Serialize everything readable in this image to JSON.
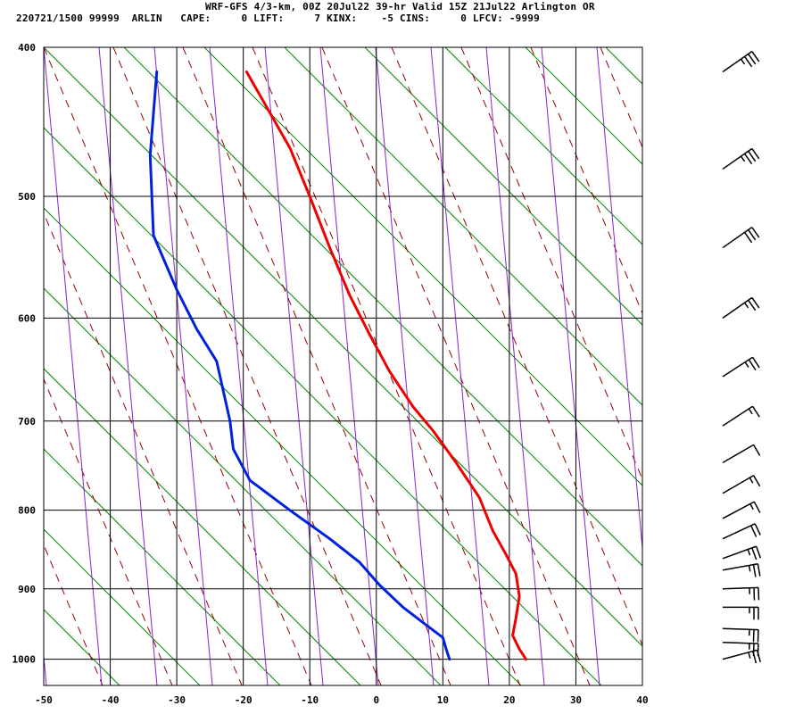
{
  "header": {
    "title": "WRF-GFS 4/3-km, 00Z 20Jul22 39-hr Valid 15Z 21Jul22 Arlington OR",
    "station_time": "220721/1500",
    "station_id": "99999",
    "station_name": "ARLIN",
    "indices": [
      {
        "label": "CAPE:",
        "value": "0"
      },
      {
        "label": "LIFT:",
        "value": "7"
      },
      {
        "label": "KINX:",
        "value": "-5"
      },
      {
        "label": "CINS:",
        "value": "0"
      },
      {
        "label": "LFCV:",
        "value": "-9999"
      }
    ]
  },
  "chart_data": {
    "type": "line",
    "xlim": [
      -50,
      40
    ],
    "ylim": [
      1040,
      400
    ],
    "x_ticks": [
      -50,
      -40,
      -30,
      -20,
      -10,
      0,
      10,
      20,
      30,
      40
    ],
    "pressure_ticks": [
      400,
      500,
      600,
      700,
      800,
      900,
      1000
    ],
    "grid": true,
    "colors": {
      "temperature": "#ee0000",
      "dewpoint": "#0022dd",
      "dry_adiabats": "#008800",
      "moist_adiabats": "#990000",
      "mixing_ratio": "#8822cc",
      "grid": "#000000",
      "wind_barbs": "#000000"
    },
    "series": [
      {
        "values": [
          [
            -19.5,
            415
          ],
          [
            -13,
            465
          ],
          [
            -10,
            500
          ],
          [
            -7,
            540
          ],
          [
            -4,
            580
          ],
          [
            -1,
            615
          ],
          [
            2,
            650
          ],
          [
            5.5,
            685
          ],
          [
            8.5,
            710
          ],
          [
            12,
            745
          ],
          [
            15.5,
            785
          ],
          [
            17.5,
            825
          ],
          [
            19.5,
            855
          ],
          [
            21,
            880
          ],
          [
            21.5,
            910
          ],
          [
            21,
            940
          ],
          [
            20.5,
            965
          ],
          [
            21.5,
            985
          ],
          [
            22.5,
            1000
          ]
        ]
      },
      {
        "values": [
          [
            -33,
            415
          ],
          [
            -34,
            470
          ],
          [
            -33.5,
            530
          ],
          [
            -30,
            575
          ],
          [
            -27,
            610
          ],
          [
            -24,
            640
          ],
          [
            -22,
            700
          ],
          [
            -21.5,
            730
          ],
          [
            -19,
            765
          ],
          [
            -13,
            800
          ],
          [
            -7,
            835
          ],
          [
            -2.5,
            865
          ],
          [
            0.5,
            895
          ],
          [
            4,
            925
          ],
          [
            7.5,
            950
          ],
          [
            10,
            968
          ],
          [
            10.5,
            985
          ],
          [
            11,
            1000
          ]
        ]
      }
    ],
    "wind_barbs": [
      {
        "pressure": 415,
        "speed_kt": 35,
        "direction_deg": 235
      },
      {
        "pressure": 480,
        "speed_kt": 35,
        "direction_deg": 235
      },
      {
        "pressure": 540,
        "speed_kt": 30,
        "direction_deg": 235
      },
      {
        "pressure": 600,
        "speed_kt": 25,
        "direction_deg": 235
      },
      {
        "pressure": 655,
        "speed_kt": 25,
        "direction_deg": 237
      },
      {
        "pressure": 705,
        "speed_kt": 15,
        "direction_deg": 237
      },
      {
        "pressure": 745,
        "speed_kt": 10,
        "direction_deg": 240
      },
      {
        "pressure": 780,
        "speed_kt": 15,
        "direction_deg": 240
      },
      {
        "pressure": 810,
        "speed_kt": 15,
        "direction_deg": 242
      },
      {
        "pressure": 835,
        "speed_kt": 20,
        "direction_deg": 245
      },
      {
        "pressure": 860,
        "speed_kt": 25,
        "direction_deg": 250
      },
      {
        "pressure": 875,
        "speed_kt": 25,
        "direction_deg": 260
      },
      {
        "pressure": 900,
        "speed_kt": 25,
        "direction_deg": 268
      },
      {
        "pressure": 925,
        "speed_kt": 25,
        "direction_deg": 270
      },
      {
        "pressure": 955,
        "speed_kt": 25,
        "direction_deg": 272
      },
      {
        "pressure": 975,
        "speed_kt": 25,
        "direction_deg": 272
      },
      {
        "pressure": 1000,
        "speed_kt": 25,
        "direction_deg": 255
      }
    ]
  }
}
